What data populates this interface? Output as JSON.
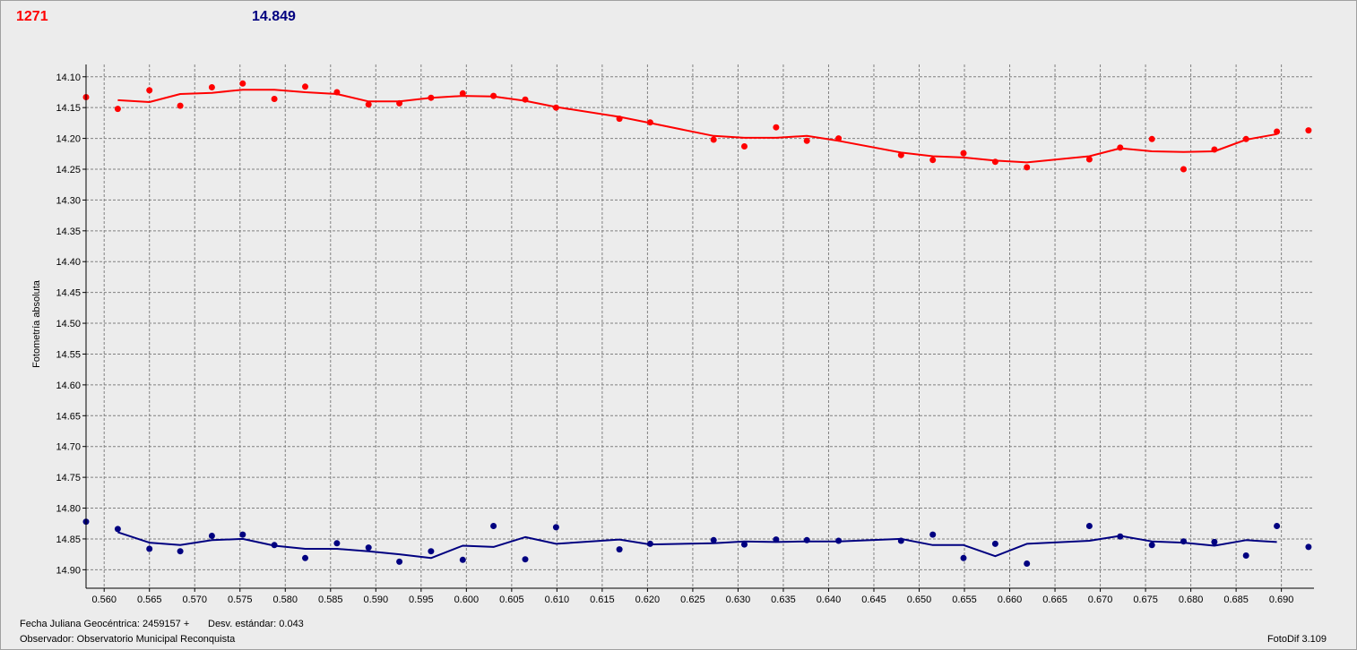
{
  "header": {
    "left_value": "1271",
    "right_value": "14.849"
  },
  "footer": {
    "jd_label": "Fecha Juliana Geocéntrica: 2459157 +",
    "stddev_label": "Desv. estándar: 0.043",
    "observer_label": "Observador: Observatorio Municipal Reconquista",
    "version_label": "FotoDif 3.109"
  },
  "colors": {
    "target": "#ff0000",
    "comparison": "#000080",
    "grid": "#808080",
    "background": "#ececec"
  },
  "chart_data": {
    "type": "scatter",
    "title": "",
    "xlabel": "",
    "ylabel": "Fotometría absoluta",
    "xlim": [
      0.558,
      0.6936
    ],
    "ylim": [
      14.08,
      14.93
    ],
    "y_inverted": true,
    "grid": true,
    "x_ticks": [
      0.56,
      0.565,
      0.57,
      0.575,
      0.58,
      0.585,
      0.59,
      0.595,
      0.6,
      0.605,
      0.61,
      0.615,
      0.62,
      0.625,
      0.63,
      0.635,
      0.64,
      0.645,
      0.65,
      0.655,
      0.66,
      0.665,
      0.67,
      0.675,
      0.68,
      0.685,
      0.69
    ],
    "x_tick_labels": [
      "0.560",
      "0.565",
      "0.570",
      "0.575",
      "0.580",
      "0.585",
      "0.590",
      "0.595",
      "0.600",
      "0.605",
      "0.610",
      "0.615",
      "0.620",
      "0.625",
      "0.630",
      "0.635",
      "0.640",
      "0.645",
      "0.650",
      "0.655",
      "0.660",
      "0.665",
      "0.670",
      "0.675",
      "0.680",
      "0.685",
      "0.690"
    ],
    "y_ticks": [
      14.1,
      14.15,
      14.2,
      14.25,
      14.3,
      14.35,
      14.4,
      14.45,
      14.5,
      14.55,
      14.6,
      14.65,
      14.7,
      14.75,
      14.8,
      14.85,
      14.9
    ],
    "y_tick_labels": [
      "14.10",
      "14.15",
      "14.20",
      "14.25",
      "14.30",
      "14.35",
      "14.40",
      "14.45",
      "14.50",
      "14.55",
      "14.60",
      "14.65",
      "14.70",
      "14.75",
      "14.80",
      "14.85",
      "14.90"
    ],
    "series": [
      {
        "key": "target",
        "color": "#ff0000",
        "points": [
          [
            0.558,
            14.133
          ],
          [
            0.5615,
            14.152
          ],
          [
            0.565,
            14.122
          ],
          [
            0.5684,
            14.147
          ],
          [
            0.5719,
            14.117
          ],
          [
            0.5753,
            14.111
          ],
          [
            0.5788,
            14.136
          ],
          [
            0.5822,
            14.116
          ],
          [
            0.5857,
            14.125
          ],
          [
            0.5892,
            14.145
          ],
          [
            0.5926,
            14.143
          ],
          [
            0.5961,
            14.134
          ],
          [
            0.5996,
            14.127
          ],
          [
            0.603,
            14.131
          ],
          [
            0.6065,
            14.137
          ],
          [
            0.6099,
            14.15
          ],
          [
            0.6169,
            14.168
          ],
          [
            0.6203,
            14.174
          ],
          [
            0.6273,
            14.202
          ],
          [
            0.6307,
            14.213
          ],
          [
            0.6342,
            14.182
          ],
          [
            0.6376,
            14.204
          ],
          [
            0.6411,
            14.2
          ],
          [
            0.648,
            14.227
          ],
          [
            0.6515,
            14.235
          ],
          [
            0.6549,
            14.224
          ],
          [
            0.6584,
            14.238
          ],
          [
            0.6619,
            14.247
          ],
          [
            0.6688,
            14.234
          ],
          [
            0.6722,
            14.215
          ],
          [
            0.6757,
            14.201
          ],
          [
            0.6792,
            14.25
          ],
          [
            0.6826,
            14.218
          ],
          [
            0.6861,
            14.201
          ],
          [
            0.6895,
            14.189
          ],
          [
            0.693,
            14.187
          ]
        ],
        "fit": [
          [
            0.5615,
            14.138
          ],
          [
            0.565,
            14.141
          ],
          [
            0.5684,
            14.128
          ],
          [
            0.5719,
            14.126
          ],
          [
            0.5753,
            14.121
          ],
          [
            0.5788,
            14.121
          ],
          [
            0.5822,
            14.125
          ],
          [
            0.5857,
            14.128
          ],
          [
            0.5892,
            14.14
          ],
          [
            0.5926,
            14.14
          ],
          [
            0.5961,
            14.134
          ],
          [
            0.5996,
            14.131
          ],
          [
            0.603,
            14.132
          ],
          [
            0.6065,
            14.139
          ],
          [
            0.6099,
            14.149
          ],
          [
            0.6169,
            14.165
          ],
          [
            0.6203,
            14.175
          ],
          [
            0.6273,
            14.196
          ],
          [
            0.6307,
            14.199
          ],
          [
            0.6342,
            14.199
          ],
          [
            0.6376,
            14.196
          ],
          [
            0.6411,
            14.204
          ],
          [
            0.648,
            14.223
          ],
          [
            0.6515,
            14.229
          ],
          [
            0.6549,
            14.231
          ],
          [
            0.6584,
            14.236
          ],
          [
            0.6619,
            14.239
          ],
          [
            0.6688,
            14.229
          ],
          [
            0.6722,
            14.216
          ],
          [
            0.6757,
            14.221
          ],
          [
            0.6792,
            14.222
          ],
          [
            0.6826,
            14.221
          ],
          [
            0.6861,
            14.202
          ],
          [
            0.6895,
            14.193
          ]
        ]
      },
      {
        "key": "comparison",
        "color": "#000080",
        "points": [
          [
            0.558,
            14.822
          ],
          [
            0.5615,
            14.834
          ],
          [
            0.565,
            14.866
          ],
          [
            0.5684,
            14.87
          ],
          [
            0.5719,
            14.845
          ],
          [
            0.5753,
            14.843
          ],
          [
            0.5788,
            14.86
          ],
          [
            0.5822,
            14.881
          ],
          [
            0.5857,
            14.857
          ],
          [
            0.5892,
            14.864
          ],
          [
            0.5926,
            14.887
          ],
          [
            0.5961,
            14.87
          ],
          [
            0.5996,
            14.884
          ],
          [
            0.603,
            14.829
          ],
          [
            0.6065,
            14.883
          ],
          [
            0.6099,
            14.831
          ],
          [
            0.6169,
            14.867
          ],
          [
            0.6203,
            14.858
          ],
          [
            0.6273,
            14.852
          ],
          [
            0.6307,
            14.859
          ],
          [
            0.6342,
            14.851
          ],
          [
            0.6376,
            14.852
          ],
          [
            0.6411,
            14.853
          ],
          [
            0.648,
            14.853
          ],
          [
            0.6515,
            14.843
          ],
          [
            0.6549,
            14.881
          ],
          [
            0.6584,
            14.858
          ],
          [
            0.6619,
            14.89
          ],
          [
            0.6688,
            14.829
          ],
          [
            0.6722,
            14.846
          ],
          [
            0.6757,
            14.86
          ],
          [
            0.6792,
            14.854
          ],
          [
            0.6826,
            14.855
          ],
          [
            0.6861,
            14.877
          ],
          [
            0.6895,
            14.829
          ],
          [
            0.693,
            14.863
          ]
        ],
        "fit": [
          [
            0.5615,
            14.839
          ],
          [
            0.565,
            14.856
          ],
          [
            0.5684,
            14.86
          ],
          [
            0.5719,
            14.852
          ],
          [
            0.5753,
            14.85
          ],
          [
            0.5788,
            14.861
          ],
          [
            0.5822,
            14.866
          ],
          [
            0.5857,
            14.866
          ],
          [
            0.5892,
            14.87
          ],
          [
            0.5926,
            14.875
          ],
          [
            0.5961,
            14.881
          ],
          [
            0.5996,
            14.861
          ],
          [
            0.603,
            14.863
          ],
          [
            0.6065,
            14.847
          ],
          [
            0.6099,
            14.858
          ],
          [
            0.6169,
            14.851
          ],
          [
            0.6203,
            14.859
          ],
          [
            0.6273,
            14.857
          ],
          [
            0.6307,
            14.854
          ],
          [
            0.6342,
            14.855
          ],
          [
            0.6376,
            14.854
          ],
          [
            0.6411,
            14.854
          ],
          [
            0.648,
            14.85
          ],
          [
            0.6515,
            14.86
          ],
          [
            0.6549,
            14.86
          ],
          [
            0.6584,
            14.878
          ],
          [
            0.6619,
            14.858
          ],
          [
            0.6688,
            14.853
          ],
          [
            0.6722,
            14.845
          ],
          [
            0.6757,
            14.854
          ],
          [
            0.6792,
            14.856
          ],
          [
            0.6826,
            14.861
          ],
          [
            0.6861,
            14.852
          ],
          [
            0.6895,
            14.855
          ]
        ]
      }
    ]
  }
}
